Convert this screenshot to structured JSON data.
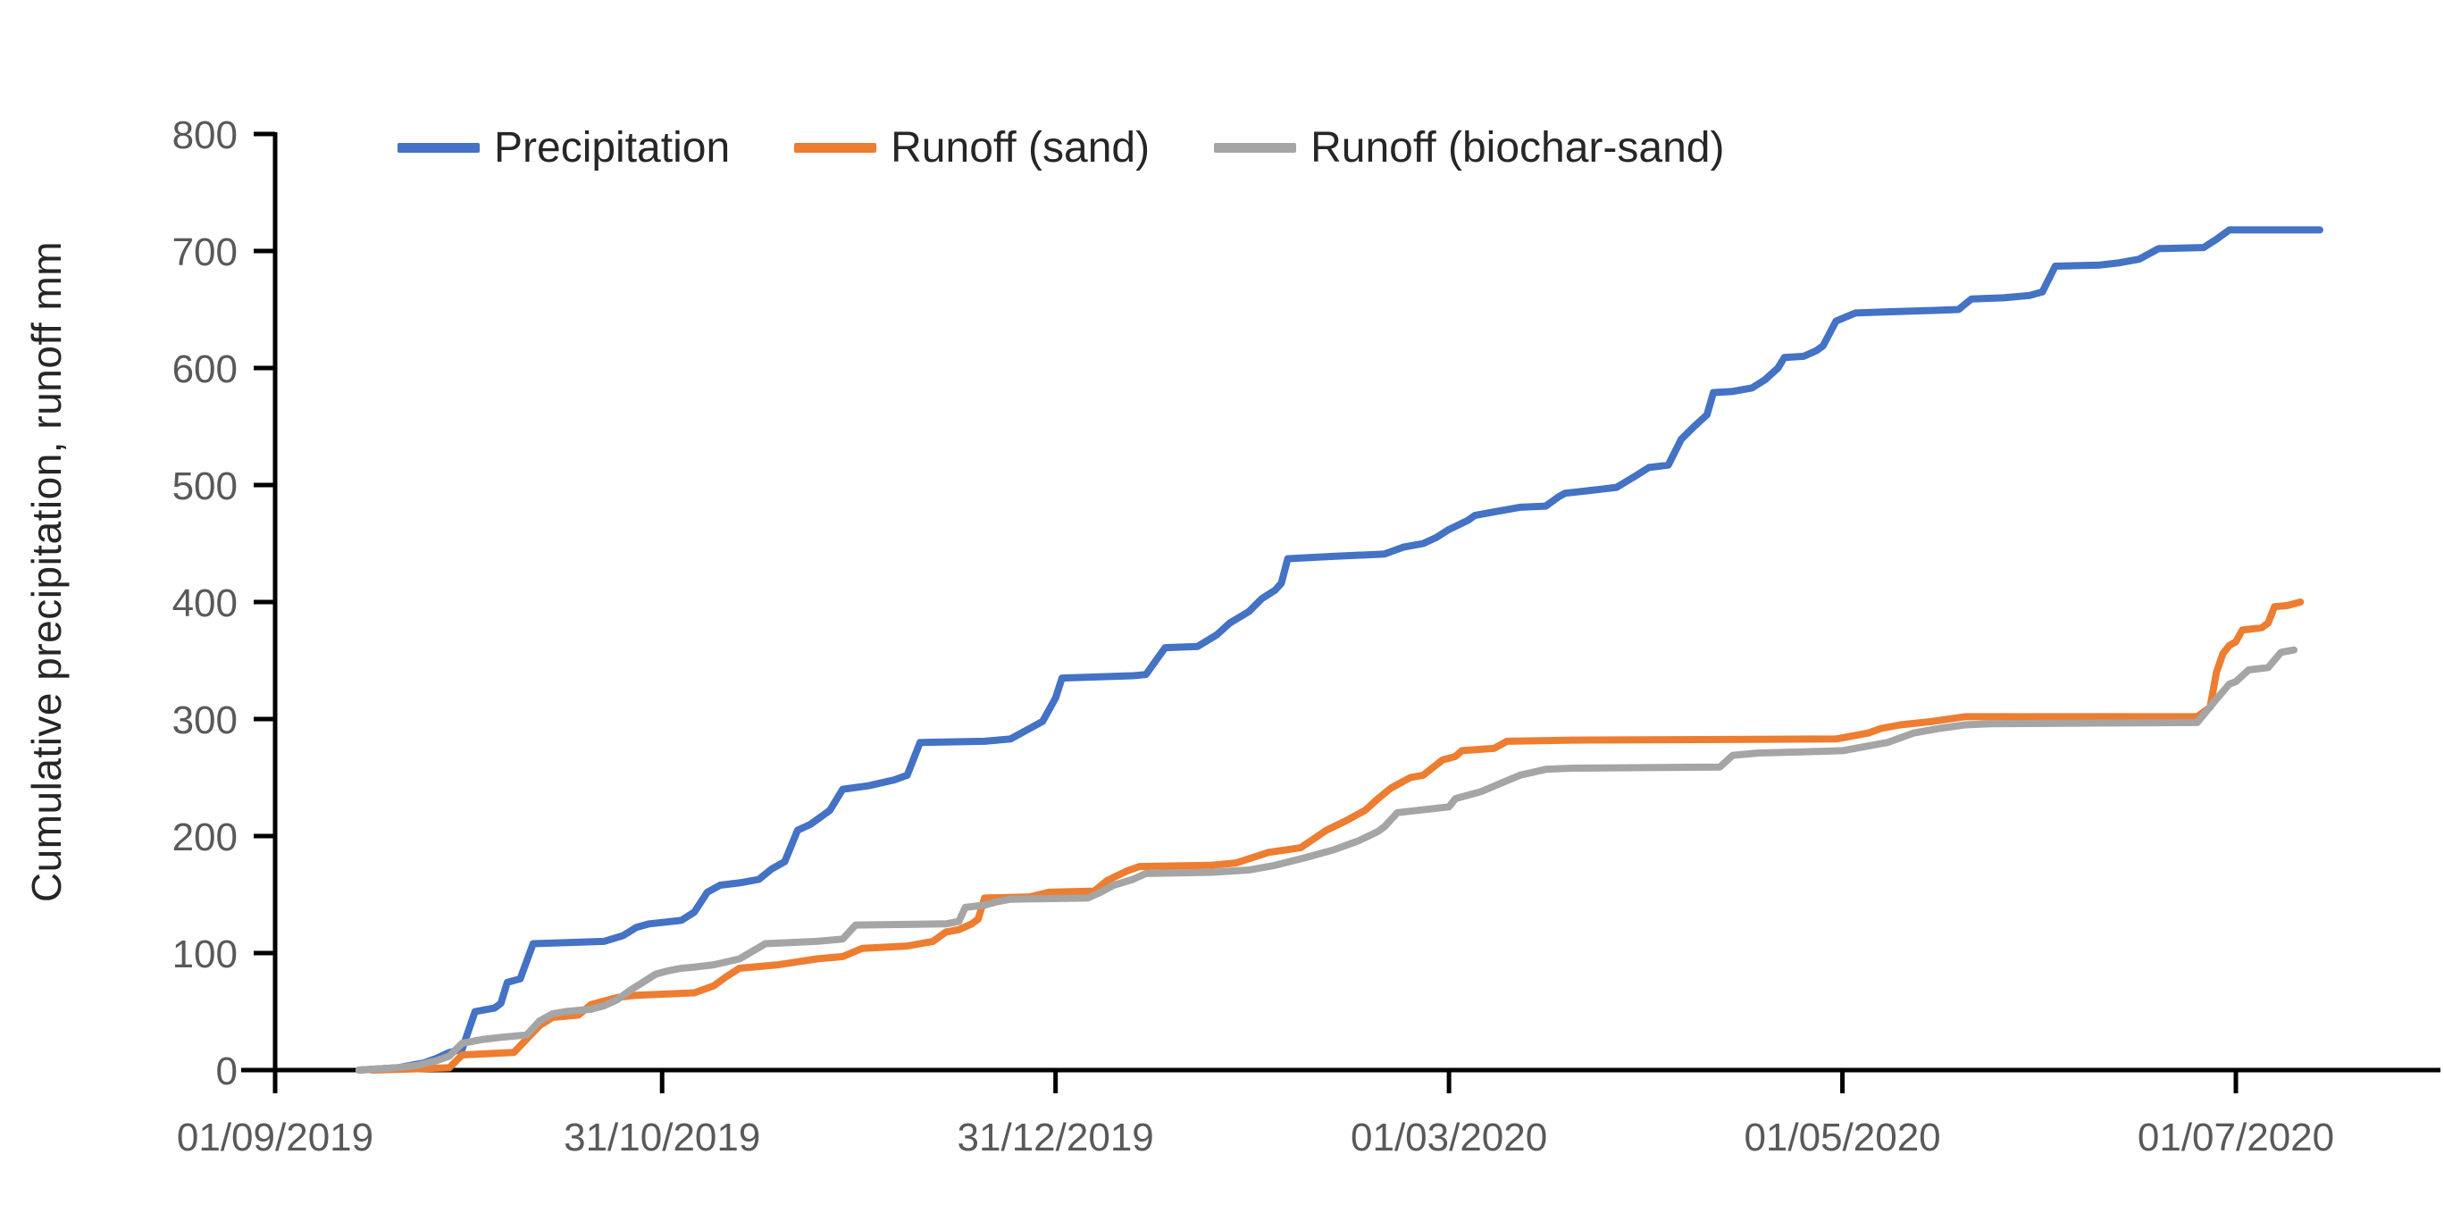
{
  "chart_data": {
    "type": "line",
    "subtype": "cumulative-step",
    "title": "",
    "xlabel": "",
    "ylabel": "Cumulative precipitation, runoff mm",
    "ylim": [
      0,
      800
    ],
    "yticks": [
      0,
      100,
      200,
      300,
      400,
      500,
      600,
      700,
      800
    ],
    "grid": false,
    "legend_position": "top",
    "x_ticks": [
      {
        "label": "01/09/2019",
        "date": "2019-09-01"
      },
      {
        "label": "31/10/2019",
        "date": "2019-10-31"
      },
      {
        "label": "31/12/2019",
        "date": "2019-12-31"
      },
      {
        "label": "01/03/2020",
        "date": "2020-03-01"
      },
      {
        "label": "01/05/2020",
        "date": "2020-05-01"
      },
      {
        "label": "01/07/2020",
        "date": "2020-07-01"
      }
    ],
    "series": [
      {
        "name": "Precipitation",
        "color": "#4472C4",
        "points": [
          [
            "2019-09-14",
            0
          ],
          [
            "2019-09-20",
            2
          ],
          [
            "2019-09-24",
            6
          ],
          [
            "2019-09-26",
            10
          ],
          [
            "2019-09-28",
            15
          ],
          [
            "2019-09-30",
            18
          ],
          [
            "2019-10-02",
            50
          ],
          [
            "2019-10-05",
            53
          ],
          [
            "2019-10-06",
            57
          ],
          [
            "2019-10-07",
            75
          ],
          [
            "2019-10-09",
            78
          ],
          [
            "2019-10-11",
            108
          ],
          [
            "2019-10-22",
            110
          ],
          [
            "2019-10-25",
            115
          ],
          [
            "2019-10-27",
            122
          ],
          [
            "2019-10-29",
            125
          ],
          [
            "2019-11-03",
            128
          ],
          [
            "2019-11-05",
            135
          ],
          [
            "2019-11-07",
            152
          ],
          [
            "2019-11-09",
            158
          ],
          [
            "2019-11-12",
            160
          ],
          [
            "2019-11-15",
            163
          ],
          [
            "2019-11-17",
            172
          ],
          [
            "2019-11-19",
            178
          ],
          [
            "2019-11-21",
            205
          ],
          [
            "2019-11-23",
            210
          ],
          [
            "2019-11-26",
            222
          ],
          [
            "2019-11-28",
            240
          ],
          [
            "2019-12-02",
            243
          ],
          [
            "2019-12-06",
            248
          ],
          [
            "2019-12-08",
            252
          ],
          [
            "2019-12-10",
            280
          ],
          [
            "2019-12-20",
            281
          ],
          [
            "2019-12-24",
            283
          ],
          [
            "2019-12-27",
            292
          ],
          [
            "2019-12-29",
            298
          ],
          [
            "2019-12-31",
            318
          ],
          [
            "2020-01-01",
            335
          ],
          [
            "2020-01-12",
            337
          ],
          [
            "2020-01-14",
            338
          ],
          [
            "2020-01-17",
            361
          ],
          [
            "2020-01-22",
            362
          ],
          [
            "2020-01-25",
            372
          ],
          [
            "2020-01-27",
            382
          ],
          [
            "2020-01-30",
            392
          ],
          [
            "2020-02-01",
            403
          ],
          [
            "2020-02-03",
            410
          ],
          [
            "2020-02-04",
            416
          ],
          [
            "2020-02-05",
            437
          ],
          [
            "2020-02-12",
            439
          ],
          [
            "2020-02-20",
            441
          ],
          [
            "2020-02-23",
            447
          ],
          [
            "2020-02-26",
            450
          ],
          [
            "2020-02-28",
            455
          ],
          [
            "2020-03-01",
            462
          ],
          [
            "2020-03-04",
            470
          ],
          [
            "2020-03-05",
            474
          ],
          [
            "2020-03-08",
            477
          ],
          [
            "2020-03-12",
            481
          ],
          [
            "2020-03-16",
            482
          ],
          [
            "2020-03-18",
            490
          ],
          [
            "2020-03-19",
            493
          ],
          [
            "2020-03-24",
            496
          ],
          [
            "2020-03-27",
            498
          ],
          [
            "2020-03-30",
            508
          ],
          [
            "2020-04-01",
            515
          ],
          [
            "2020-04-04",
            517
          ],
          [
            "2020-04-06",
            539
          ],
          [
            "2020-04-08",
            550
          ],
          [
            "2020-04-10",
            560
          ],
          [
            "2020-04-11",
            579
          ],
          [
            "2020-04-14",
            580
          ],
          [
            "2020-04-17",
            583
          ],
          [
            "2020-04-19",
            590
          ],
          [
            "2020-04-21",
            600
          ],
          [
            "2020-04-22",
            609
          ],
          [
            "2020-04-25",
            610
          ],
          [
            "2020-04-27",
            615
          ],
          [
            "2020-04-28",
            619
          ],
          [
            "2020-04-30",
            640
          ],
          [
            "2020-05-03",
            647
          ],
          [
            "2020-05-08",
            648
          ],
          [
            "2020-05-14",
            649
          ],
          [
            "2020-05-19",
            650
          ],
          [
            "2020-05-21",
            659
          ],
          [
            "2020-05-26",
            660
          ],
          [
            "2020-05-30",
            662
          ],
          [
            "2020-06-01",
            665
          ],
          [
            "2020-06-03",
            687
          ],
          [
            "2020-06-10",
            688
          ],
          [
            "2020-06-13",
            690
          ],
          [
            "2020-06-16",
            693
          ],
          [
            "2020-06-19",
            702
          ],
          [
            "2020-06-26",
            703
          ],
          [
            "2020-06-28",
            710
          ],
          [
            "2020-06-30",
            718
          ],
          [
            "2020-07-14",
            718
          ]
        ]
      },
      {
        "name": "Runoff (sand)",
        "color": "#ED7D31",
        "points": [
          [
            "2019-09-16",
            0
          ],
          [
            "2019-09-22",
            1
          ],
          [
            "2019-09-28",
            2
          ],
          [
            "2019-09-30",
            13
          ],
          [
            "2019-10-08",
            15
          ],
          [
            "2019-10-12",
            38
          ],
          [
            "2019-10-14",
            45
          ],
          [
            "2019-10-18",
            47
          ],
          [
            "2019-10-20",
            56
          ],
          [
            "2019-10-24",
            62
          ],
          [
            "2019-10-27",
            64
          ],
          [
            "2019-11-05",
            66
          ],
          [
            "2019-11-08",
            72
          ],
          [
            "2019-11-10",
            80
          ],
          [
            "2019-11-12",
            87
          ],
          [
            "2019-11-18",
            90
          ],
          [
            "2019-11-24",
            95
          ],
          [
            "2019-11-28",
            97
          ],
          [
            "2019-12-01",
            104
          ],
          [
            "2019-12-08",
            106
          ],
          [
            "2019-12-12",
            110
          ],
          [
            "2019-12-14",
            118
          ],
          [
            "2019-12-16",
            120
          ],
          [
            "2019-12-18",
            125
          ],
          [
            "2019-12-19",
            129
          ],
          [
            "2019-12-20",
            147
          ],
          [
            "2019-12-27",
            148
          ],
          [
            "2019-12-30",
            152
          ],
          [
            "2020-01-06",
            153
          ],
          [
            "2020-01-08",
            162
          ],
          [
            "2020-01-11",
            170
          ],
          [
            "2020-01-13",
            174
          ],
          [
            "2020-01-24",
            175
          ],
          [
            "2020-01-28",
            177
          ],
          [
            "2020-02-02",
            186
          ],
          [
            "2020-02-07",
            190
          ],
          [
            "2020-02-11",
            205
          ],
          [
            "2020-02-14",
            213
          ],
          [
            "2020-02-17",
            222
          ],
          [
            "2020-02-19",
            232
          ],
          [
            "2020-02-21",
            241
          ],
          [
            "2020-02-24",
            250
          ],
          [
            "2020-02-26",
            252
          ],
          [
            "2020-02-29",
            265
          ],
          [
            "2020-03-02",
            268
          ],
          [
            "2020-03-03",
            273
          ],
          [
            "2020-03-08",
            275
          ],
          [
            "2020-03-10",
            281
          ],
          [
            "2020-03-20",
            282
          ],
          [
            "2020-04-30",
            283
          ],
          [
            "2020-05-05",
            288
          ],
          [
            "2020-05-07",
            292
          ],
          [
            "2020-05-10",
            295
          ],
          [
            "2020-05-15",
            298
          ],
          [
            "2020-05-20",
            302
          ],
          [
            "2020-06-25",
            302
          ],
          [
            "2020-06-27",
            310
          ],
          [
            "2020-06-28",
            340
          ],
          [
            "2020-06-29",
            356
          ],
          [
            "2020-06-30",
            363
          ],
          [
            "2020-07-01",
            366
          ],
          [
            "2020-07-02",
            376
          ],
          [
            "2020-07-05",
            378
          ],
          [
            "2020-07-06",
            382
          ],
          [
            "2020-07-07",
            396
          ],
          [
            "2020-07-09",
            397
          ],
          [
            "2020-07-11",
            400
          ]
        ]
      },
      {
        "name": "Runoff (biochar-sand)",
        "color": "#A5A5A5",
        "points": [
          [
            "2019-09-14",
            0
          ],
          [
            "2019-09-20",
            2
          ],
          [
            "2019-09-23",
            4
          ],
          [
            "2019-09-26",
            8
          ],
          [
            "2019-09-28",
            12
          ],
          [
            "2019-09-30",
            23
          ],
          [
            "2019-10-03",
            26
          ],
          [
            "2019-10-06",
            28
          ],
          [
            "2019-10-10",
            30
          ],
          [
            "2019-10-12",
            42
          ],
          [
            "2019-10-14",
            48
          ],
          [
            "2019-10-16",
            50
          ],
          [
            "2019-10-20",
            52
          ],
          [
            "2019-10-22",
            55
          ],
          [
            "2019-10-24",
            60
          ],
          [
            "2019-10-26",
            68
          ],
          [
            "2019-10-28",
            75
          ],
          [
            "2019-10-30",
            82
          ],
          [
            "2019-11-01",
            85
          ],
          [
            "2019-11-03",
            87
          ],
          [
            "2019-11-05",
            88
          ],
          [
            "2019-11-08",
            90
          ],
          [
            "2019-11-12",
            95
          ],
          [
            "2019-11-16",
            108
          ],
          [
            "2019-11-24",
            110
          ],
          [
            "2019-11-28",
            112
          ],
          [
            "2019-11-30",
            124
          ],
          [
            "2019-12-14",
            125
          ],
          [
            "2019-12-16",
            127
          ],
          [
            "2019-12-17",
            139
          ],
          [
            "2019-12-20",
            141
          ],
          [
            "2019-12-22",
            144
          ],
          [
            "2019-12-24",
            146
          ],
          [
            "2020-01-05",
            147
          ],
          [
            "2020-01-07",
            152
          ],
          [
            "2020-01-09",
            158
          ],
          [
            "2020-01-12",
            163
          ],
          [
            "2020-01-14",
            168
          ],
          [
            "2020-01-24",
            169
          ],
          [
            "2020-01-30",
            171
          ],
          [
            "2020-02-03",
            175
          ],
          [
            "2020-02-08",
            182
          ],
          [
            "2020-02-12",
            188
          ],
          [
            "2020-02-16",
            196
          ],
          [
            "2020-02-19",
            204
          ],
          [
            "2020-02-20",
            208
          ],
          [
            "2020-02-22",
            220
          ],
          [
            "2020-03-01",
            225
          ],
          [
            "2020-03-02",
            232
          ],
          [
            "2020-03-06",
            238
          ],
          [
            "2020-03-09",
            245
          ],
          [
            "2020-03-12",
            252
          ],
          [
            "2020-03-16",
            257
          ],
          [
            "2020-03-20",
            258
          ],
          [
            "2020-04-12",
            259
          ],
          [
            "2020-04-14",
            269
          ],
          [
            "2020-04-18",
            271
          ],
          [
            "2020-04-25",
            272
          ],
          [
            "2020-05-01",
            273
          ],
          [
            "2020-05-08",
            280
          ],
          [
            "2020-05-12",
            288
          ],
          [
            "2020-05-16",
            292
          ],
          [
            "2020-05-20",
            295
          ],
          [
            "2020-05-24",
            296
          ],
          [
            "2020-06-25",
            297
          ],
          [
            "2020-06-28",
            317
          ],
          [
            "2020-06-30",
            330
          ],
          [
            "2020-07-01",
            332
          ],
          [
            "2020-07-03",
            342
          ],
          [
            "2020-07-06",
            344
          ],
          [
            "2020-07-08",
            357
          ],
          [
            "2020-07-10",
            359
          ]
        ]
      }
    ],
    "axis_color": "#000000",
    "tick_label_color": "#595959"
  },
  "legend": {
    "items": [
      {
        "label": "Precipitation"
      },
      {
        "label": "Runoff (sand)"
      },
      {
        "label": "Runoff (biochar-sand)"
      }
    ]
  }
}
